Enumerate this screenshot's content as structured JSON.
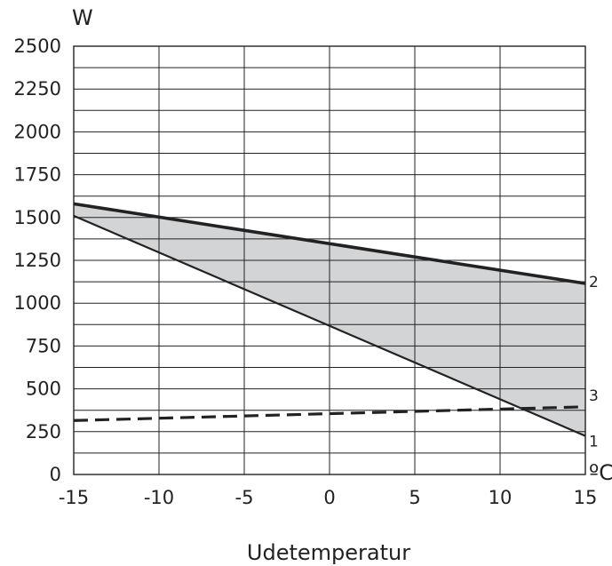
{
  "chart_data": {
    "type": "line",
    "title": "",
    "xlabel": "Udetemperatur",
    "ylabel": "W",
    "x_unit": "ºC",
    "xlim": [
      -15,
      15
    ],
    "ylim": [
      0,
      2500
    ],
    "x_ticks": [
      "-15",
      "-10",
      "-5",
      "0",
      "5",
      "10",
      "15"
    ],
    "y_ticks": [
      "0",
      "250",
      "500",
      "750",
      "1000",
      "1250",
      "1500",
      "1750",
      "2000",
      "2250",
      "2500"
    ],
    "grid": true,
    "series": [
      {
        "name": "1",
        "style": "solid",
        "x": [
          -15,
          15
        ],
        "y": [
          1510,
          225
        ]
      },
      {
        "name": "2",
        "style": "solid",
        "x": [
          -15,
          15
        ],
        "y": [
          1580,
          1115
        ]
      },
      {
        "name": "3",
        "style": "dashed",
        "x": [
          -15,
          15
        ],
        "y": [
          315,
          395
        ]
      }
    ],
    "shaded_region": {
      "between": [
        "1",
        "2"
      ],
      "color": "#d3d4d6"
    },
    "colors": {
      "line": "#222222",
      "grid": "#222222",
      "fill": "#d3d4d6"
    }
  }
}
